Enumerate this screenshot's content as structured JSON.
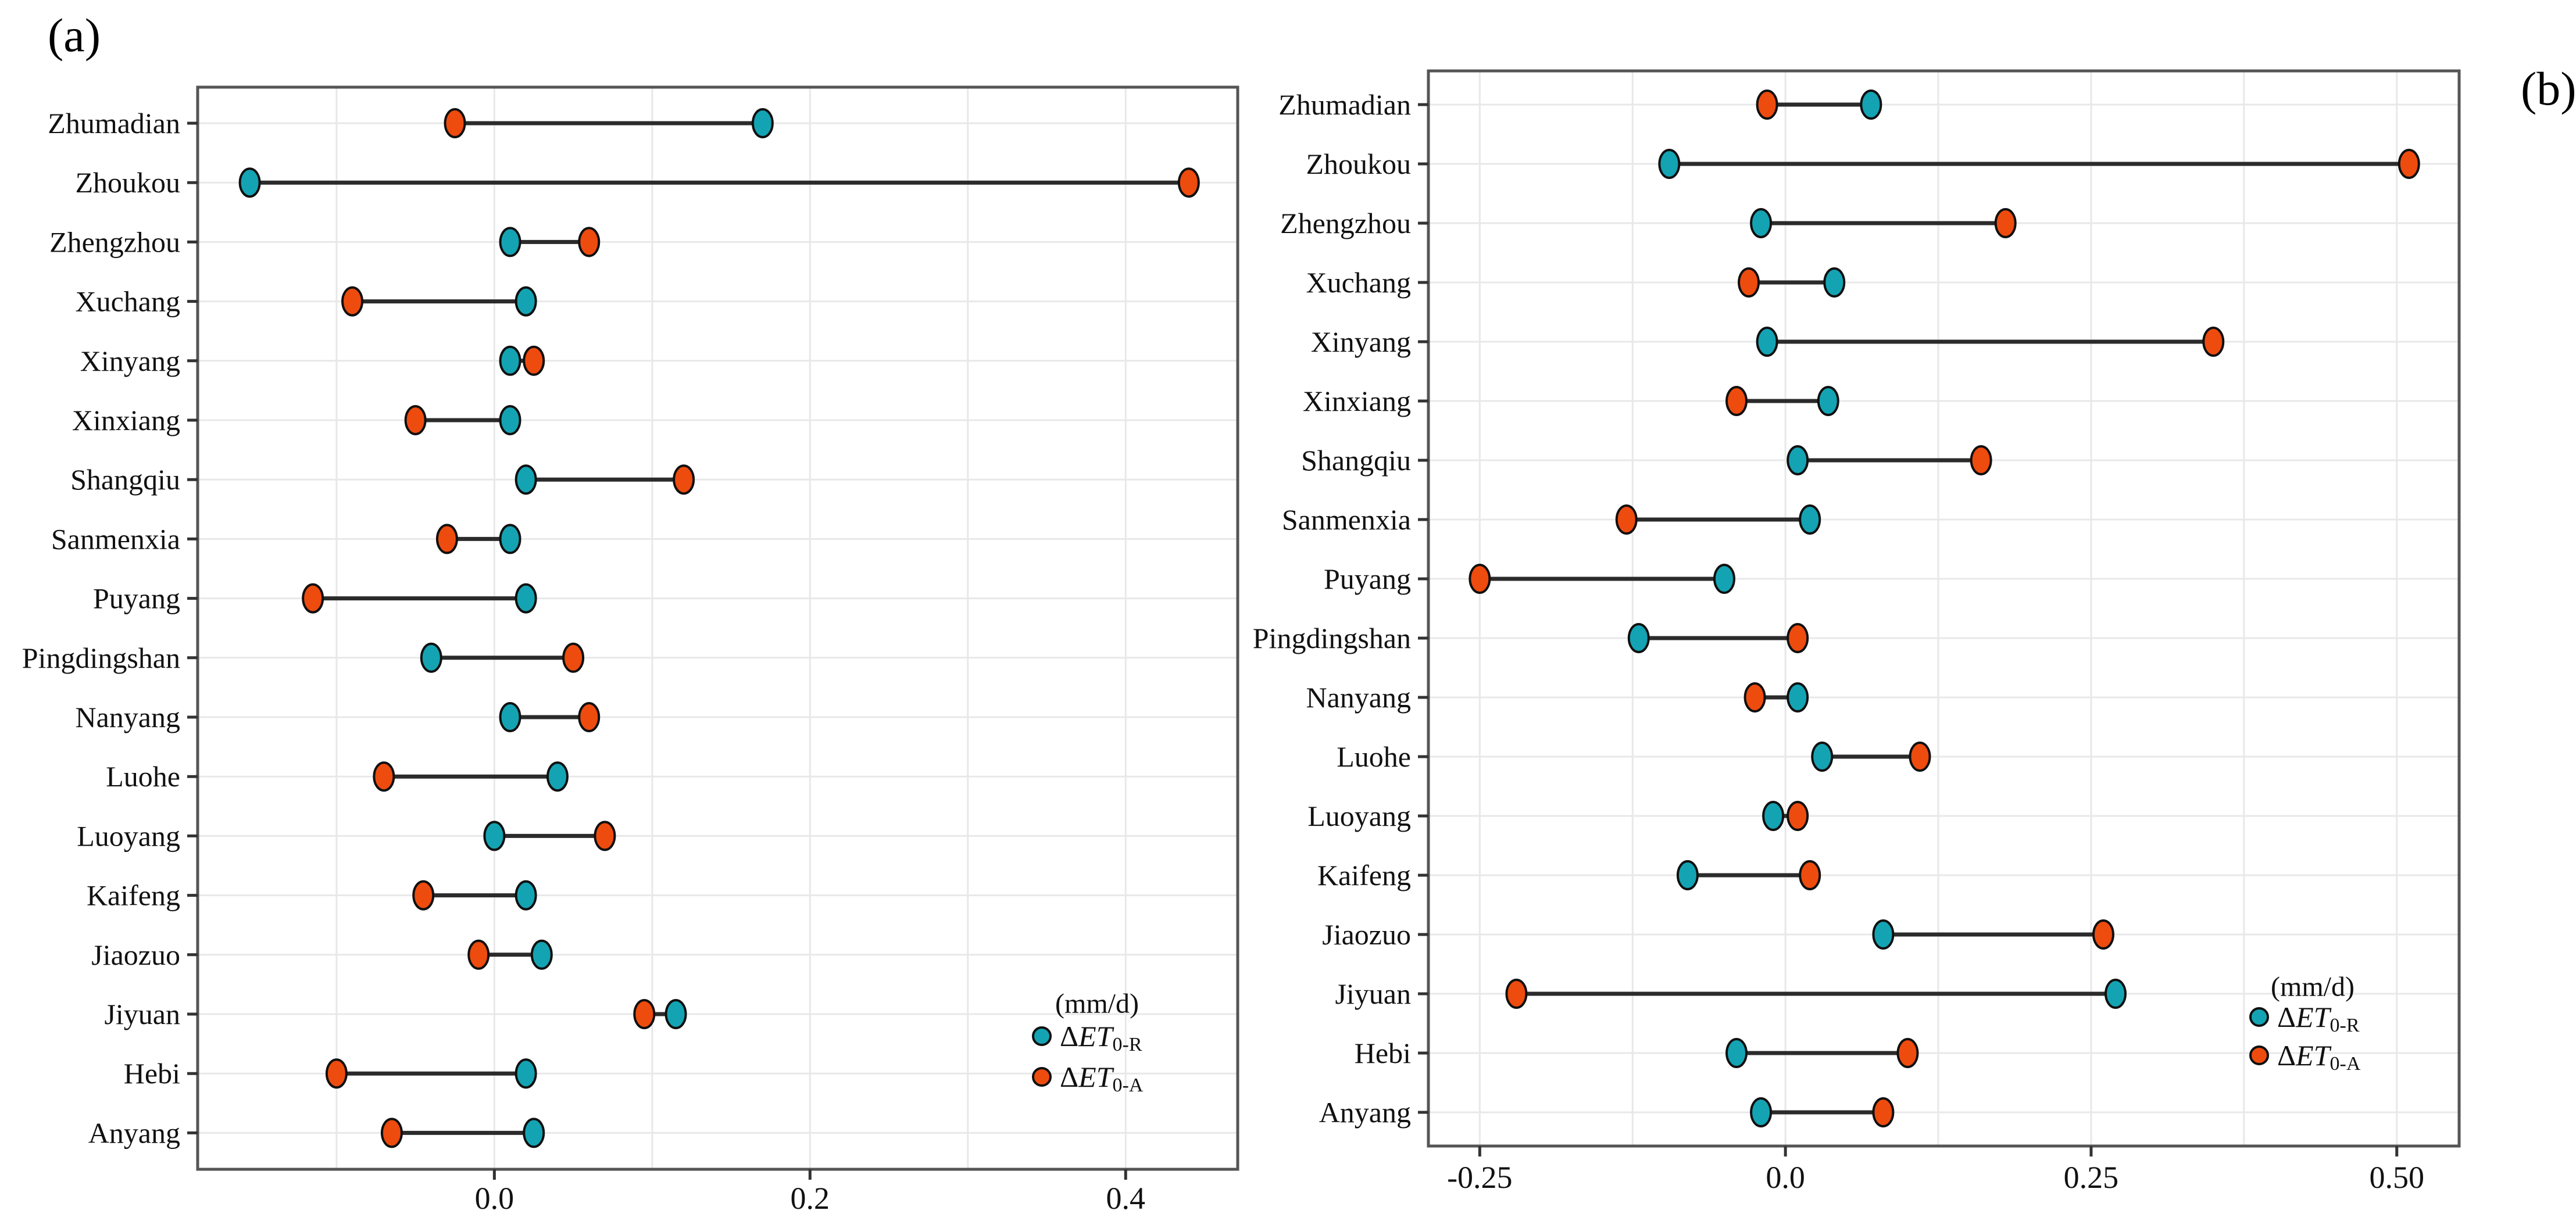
{
  "figure": {
    "panel_a_tag": "(a)",
    "panel_b_tag": "(b)",
    "unit_label": "(mm/d)",
    "legend_items": [
      {
        "id": "et0r",
        "prefix": "Δ",
        "symbol": "ET",
        "subscript": "0-R",
        "color": "#14a3b3"
      },
      {
        "id": "et0a",
        "prefix": "Δ",
        "symbol": "ET",
        "subscript": "0-A",
        "color": "#ee4b0e"
      }
    ],
    "colors": {
      "et0r": "#14a3b3",
      "et0a": "#ee4b0e",
      "connector": "#2b2b2b",
      "border": "#555555",
      "grid": "#e8e8e8",
      "tick": "#333333",
      "text": "#111111",
      "dot_outline": "#101010"
    }
  },
  "chart_data": [
    {
      "type": "dumbbell",
      "panel": "a",
      "unit": "mm/d",
      "categories": [
        "Zhumadian",
        "Zhoukou",
        "Zhengzhou",
        "Xuchang",
        "Xinyang",
        "Xinxiang",
        "Shangqiu",
        "Sanmenxia",
        "Puyang",
        "Pingdingshan",
        "Nanyang",
        "Luohe",
        "Luoyang",
        "Kaifeng",
        "Jiaozuo",
        "Jiyuan",
        "Hebi",
        "Anyang"
      ],
      "series": [
        {
          "name": "ΔET0-R",
          "color": "#14a3b3",
          "values": [
            0.17,
            -0.155,
            0.01,
            0.02,
            0.01,
            0.01,
            0.02,
            0.01,
            0.02,
            -0.04,
            0.01,
            0.04,
            0.0,
            0.02,
            0.03,
            0.115,
            0.02,
            0.025
          ]
        },
        {
          "name": "ΔET0-A",
          "color": "#ee4b0e",
          "values": [
            -0.025,
            0.44,
            0.06,
            -0.09,
            0.025,
            -0.05,
            0.12,
            -0.03,
            -0.115,
            0.05,
            0.06,
            -0.07,
            0.07,
            -0.045,
            -0.01,
            0.095,
            -0.1,
            -0.065
          ]
        }
      ],
      "xlim": [
        -0.188,
        0.471
      ],
      "x_ticks": [
        {
          "value": 0.0,
          "label": "0.0"
        },
        {
          "value": 0.2,
          "label": "0.2"
        },
        {
          "value": 0.4,
          "label": "0.4"
        }
      ],
      "x_gridlines": [
        -0.1,
        0.0,
        0.1,
        0.2,
        0.3,
        0.4
      ],
      "grid": true,
      "legend_position": "inside-bottom-right"
    },
    {
      "type": "dumbbell",
      "panel": "b",
      "unit": "mm/d",
      "categories": [
        "Zhumadian",
        "Zhoukou",
        "Zhengzhou",
        "Xuchang",
        "Xinyang",
        "Xinxiang",
        "Shangqiu",
        "Sanmenxia",
        "Puyang",
        "Pingdingshan",
        "Nanyang",
        "Luohe",
        "Luoyang",
        "Kaifeng",
        "Jiaozuo",
        "Jiyuan",
        "Hebi",
        "Anyang"
      ],
      "series": [
        {
          "name": "ΔET0-R",
          "color": "#14a3b3",
          "values": [
            0.07,
            -0.095,
            -0.02,
            0.04,
            -0.015,
            0.035,
            0.01,
            0.02,
            -0.05,
            -0.12,
            0.01,
            0.03,
            -0.01,
            -0.08,
            0.08,
            0.27,
            -0.04,
            -0.02
          ]
        },
        {
          "name": "ΔET0-A",
          "color": "#ee4b0e",
          "values": [
            -0.015,
            0.51,
            0.18,
            -0.03,
            0.35,
            -0.04,
            0.16,
            -0.13,
            -0.25,
            0.01,
            -0.025,
            0.11,
            0.01,
            0.02,
            0.26,
            -0.22,
            0.1,
            0.08
          ]
        }
      ],
      "xlim": [
        -0.292,
        0.551
      ],
      "x_ticks": [
        {
          "value": -0.25,
          "label": "-0.25"
        },
        {
          "value": 0.0,
          "label": "0.0"
        },
        {
          "value": 0.25,
          "label": "0.25"
        },
        {
          "value": 0.5,
          "label": "0.50"
        }
      ],
      "x_gridlines": [
        -0.25,
        -0.125,
        0.0,
        0.125,
        0.25,
        0.375,
        0.5
      ],
      "grid": true,
      "legend_position": "inside-bottom-right"
    }
  ]
}
